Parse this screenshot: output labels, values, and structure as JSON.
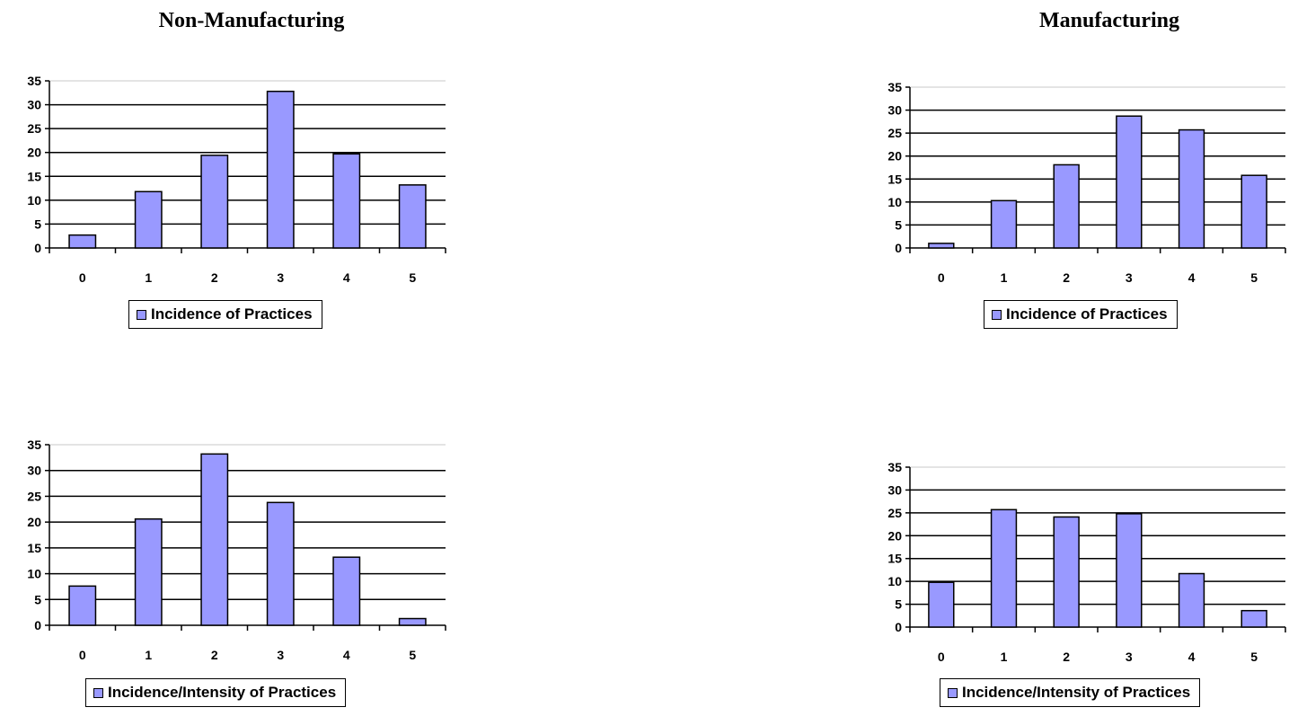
{
  "titles": {
    "left": "Non-Manufacturing",
    "right": "Manufacturing"
  },
  "colors": {
    "bar_fill": "#9999ff",
    "bar_stroke": "#000000",
    "grid": "#000000"
  },
  "chart_data": [
    {
      "type": "bar",
      "group": "Non-Manufacturing",
      "categories": [
        "0",
        "1",
        "2",
        "3",
        "4",
        "5"
      ],
      "series": [
        {
          "name": "Incidence of Practices",
          "values": [
            2.7,
            11.8,
            19.4,
            32.8,
            19.7,
            13.2
          ]
        }
      ],
      "ylim": [
        0,
        35
      ],
      "yticks": [
        0,
        5,
        10,
        15,
        20,
        25,
        30,
        35
      ],
      "grid": true,
      "legend": "bottom"
    },
    {
      "type": "bar",
      "group": "Manufacturing",
      "categories": [
        "0",
        "1",
        "2",
        "3",
        "4",
        "5"
      ],
      "series": [
        {
          "name": "Incidence of Practices",
          "values": [
            1.0,
            10.3,
            18.1,
            28.7,
            25.7,
            15.8
          ]
        }
      ],
      "ylim": [
        0,
        35
      ],
      "yticks": [
        0,
        5,
        10,
        15,
        20,
        25,
        30,
        35
      ],
      "grid": true,
      "legend": "bottom"
    },
    {
      "type": "bar",
      "group": "Non-Manufacturing",
      "categories": [
        "0",
        "1",
        "2",
        "3",
        "4",
        "5"
      ],
      "series": [
        {
          "name": "Incidence/Intensity of Practices",
          "values": [
            7.6,
            20.6,
            33.2,
            23.8,
            13.2,
            1.3
          ]
        }
      ],
      "ylim": [
        0,
        35
      ],
      "yticks": [
        0,
        5,
        10,
        15,
        20,
        25,
        30,
        35
      ],
      "grid": true,
      "legend": "bottom"
    },
    {
      "type": "bar",
      "group": "Manufacturing",
      "categories": [
        "0",
        "1",
        "2",
        "3",
        "4",
        "5"
      ],
      "series": [
        {
          "name": "Incidence/Intensity of Practices",
          "values": [
            9.8,
            25.7,
            24.1,
            24.8,
            11.7,
            3.6
          ]
        }
      ],
      "ylim": [
        0,
        35
      ],
      "yticks": [
        0,
        5,
        10,
        15,
        20,
        25,
        30,
        35
      ],
      "grid": true,
      "legend": "bottom"
    }
  ]
}
